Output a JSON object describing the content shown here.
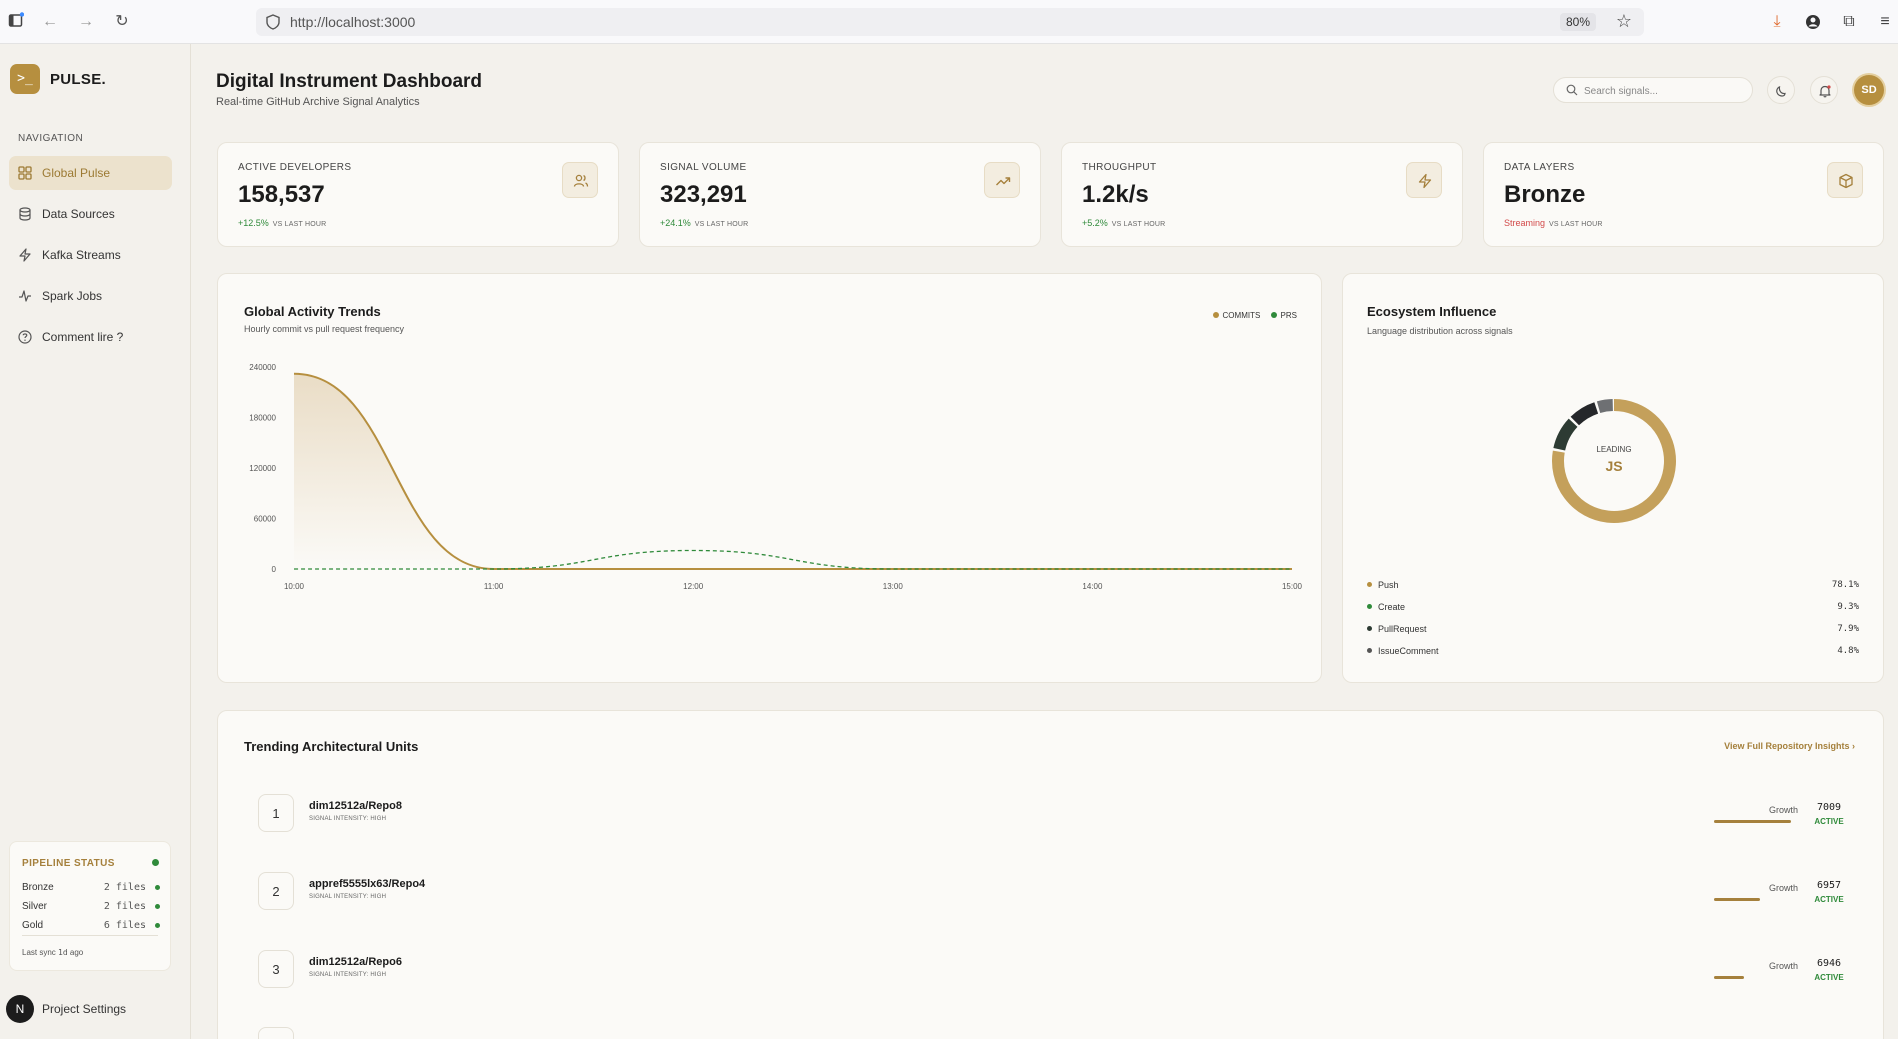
{
  "browser": {
    "url": "http://localhost:3000",
    "zoom": "80%"
  },
  "sidebar": {
    "brand": "PULSE.",
    "logo_glyph": ">_",
    "nav_heading": "NAVIGATION",
    "items": [
      {
        "label": "Global Pulse",
        "icon": "grid-icon",
        "active": true
      },
      {
        "label": "Data Sources",
        "icon": "database-icon",
        "active": false
      },
      {
        "label": "Kafka Streams",
        "icon": "lightning-icon",
        "active": false
      },
      {
        "label": "Spark Jobs",
        "icon": "activity-icon",
        "active": false
      },
      {
        "label": "Comment lire ?",
        "icon": "help-circle-icon",
        "active": false
      }
    ],
    "pipeline": {
      "title": "PIPELINE STATUS",
      "rows": [
        {
          "name": "Bronze",
          "count": "2 files"
        },
        {
          "name": "Silver",
          "count": "2 files"
        },
        {
          "name": "Gold",
          "count": "6 files"
        }
      ],
      "sync_prefix": "Last sync",
      "sync_value": "1d",
      "sync_suffix": "ago"
    },
    "footer_avatar": "N",
    "footer_label": "Project Settings"
  },
  "header": {
    "title": "Digital Instrument Dashboard",
    "subtitle": "Real-time GitHub Archive Signal Analytics",
    "search_placeholder": "Search signals...",
    "user_initials": "SD"
  },
  "stats": [
    {
      "label": "ACTIVE DEVELOPERS",
      "value": "158,537",
      "delta": "+12.5%",
      "vs": "VS LAST HOUR",
      "icon": "users-icon",
      "delta_color": "#2f8a3a"
    },
    {
      "label": "SIGNAL VOLUME",
      "value": "323,291",
      "delta": "+24.1%",
      "vs": "VS LAST HOUR",
      "icon": "trending-up-icon",
      "delta_color": "#2f8a3a"
    },
    {
      "label": "THROUGHPUT",
      "value": "1.2k/s",
      "delta": "+5.2%",
      "vs": "VS LAST HOUR",
      "icon": "lightning-icon",
      "delta_color": "#2f8a3a"
    },
    {
      "label": "DATA LAYERS",
      "value": "Bronze",
      "delta": "Streaming",
      "vs": "VS LAST HOUR",
      "icon": "box-icon",
      "delta_color": "#d24a4a"
    }
  ],
  "activity": {
    "title": "Global Activity Trends",
    "subtitle": "Hourly commit vs pull request frequency",
    "legend": [
      {
        "name": "COMMITS",
        "color": "#b68f3f"
      },
      {
        "name": "PRS",
        "color": "#2f8a3a"
      }
    ]
  },
  "chart_data": {
    "type": "area",
    "x": [
      "10:00",
      "11:00",
      "12:00",
      "13:00",
      "14:00",
      "15:00"
    ],
    "yticks": [
      0,
      60000,
      120000,
      180000,
      240000
    ],
    "ylim": [
      0,
      240000
    ],
    "series": [
      {
        "name": "COMMITS",
        "values": [
          232000,
          0,
          0,
          0,
          0,
          0
        ],
        "color": "#b68f3f",
        "style": "area"
      },
      {
        "name": "PRS",
        "values": [
          0,
          0,
          22000,
          0,
          0,
          0
        ],
        "color": "#2f8a3a",
        "style": "dashed"
      }
    ],
    "grid": false,
    "legend_position": "top-right"
  },
  "ecosystem": {
    "title": "Ecosystem Influence",
    "subtitle": "Language distribution across signals",
    "center_label": "LEADING",
    "center_value": "JS",
    "segments": [
      {
        "name": "Push",
        "pct": "78.1%",
        "value": 78.1,
        "color": "#c4a05b"
      },
      {
        "name": "Create",
        "pct": "9.3%",
        "value": 9.3,
        "color": "#2d3b33"
      },
      {
        "name": "PullRequest",
        "pct": "7.9%",
        "value": 7.9,
        "color": "#25272a"
      },
      {
        "name": "IssueComment",
        "pct": "4.8%",
        "value": 4.8,
        "color": "#6e7073"
      }
    ],
    "dot_colors": [
      "#b68f3f",
      "#2f8a3a",
      "#2d3b33",
      "#555555"
    ]
  },
  "trending": {
    "title": "Trending Architectural Units",
    "link": "View Full Repository Insights",
    "growth_label": "Growth",
    "rows": [
      {
        "rank": "1",
        "name": "dim12512a/Repo8",
        "meta": "SIGNAL INTENSITY: HIGH",
        "score": "7009",
        "state": "ACTIVE",
        "growth": 0.92
      },
      {
        "rank": "2",
        "name": "appref5555lx63/Repo4",
        "meta": "SIGNAL INTENSITY: HIGH",
        "score": "6957",
        "state": "ACTIVE",
        "growth": 0.55
      },
      {
        "rank": "3",
        "name": "dim12512a/Repo6",
        "meta": "SIGNAL INTENSITY: HIGH",
        "score": "6946",
        "state": "ACTIVE",
        "growth": 0.36
      }
    ]
  }
}
